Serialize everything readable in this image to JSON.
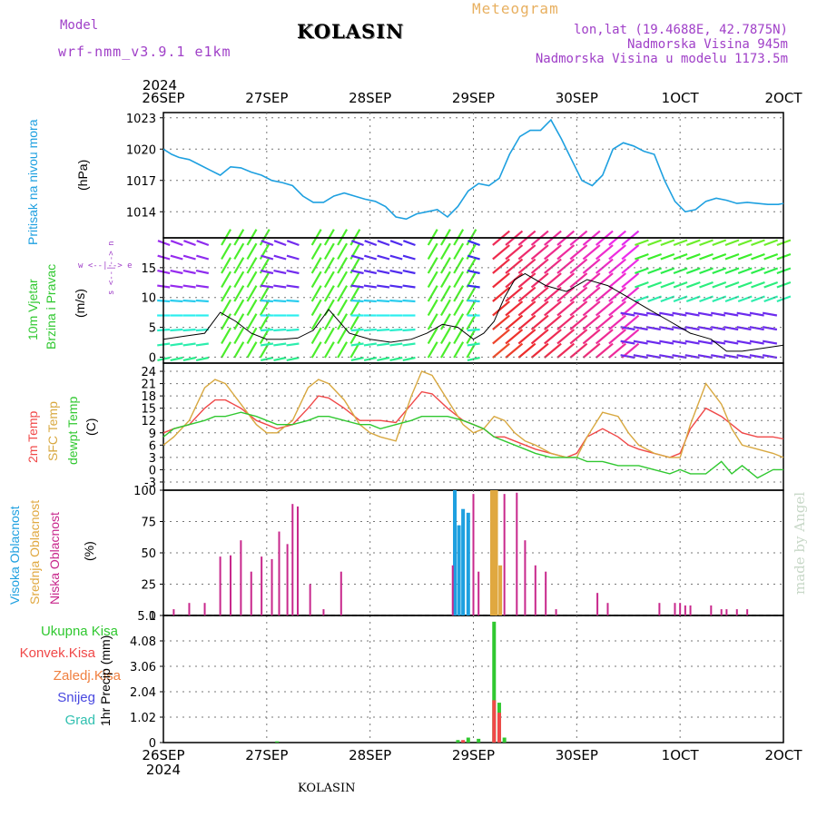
{
  "header": {
    "model_label": "Model",
    "model_name": "wrf-nmm_v3.9.1 e1km",
    "station": "KOLASIN",
    "product": "Meteogram",
    "lonlat": "lon,lat (19.4688E, 42.7875N)",
    "altitude": "Nadmorska Visina 945m",
    "model_altitude": "Nadmorska Visina u modelu 1173.5m",
    "footer_station": "KOLASIN",
    "credit": "made by Angel"
  },
  "time_axis": {
    "year": "2024",
    "labels": [
      "26SEP",
      "27SEP",
      "28SEP",
      "29SEP",
      "30SEP",
      "1OCT",
      "2OCT"
    ]
  },
  "panel_labels": {
    "pressure": {
      "name": "Pritisak na nivou mora",
      "unit": "(hPa)"
    },
    "wind": {
      "name1": "10m Vjetar",
      "name2": "Brzina i Pravac",
      "unit": "(m/s)",
      "compass": "w <--|--> e",
      "compass_v": "s <--|--> n"
    },
    "temp": {
      "t2m": "2m Temp",
      "sfc": "SFC Temp",
      "dew": "dewpt Temp",
      "unit": "(C)"
    },
    "cloud": {
      "high": "Visoka Oblacnost",
      "mid": "Srednja Oblacnost",
      "low": "Niska Oblacnost",
      "unit": "(%)"
    },
    "precip": {
      "total": "Ukupna Kisa",
      "conv": "Konvek.Kisa",
      "frozen": "Zaledj.Kisa",
      "snow": "Snijeg",
      "hail": "Grad",
      "unit": "1hr Precip (mm)"
    }
  },
  "colors": {
    "pressure": "#1ea0e0",
    "t2m": "#f04848",
    "sfc": "#d8a840",
    "dew": "#30c830",
    "high_cloud": "#1ea0e0",
    "mid_cloud": "#e0a840",
    "low_cloud": "#c8288c",
    "total_rain": "#30c830",
    "conv_rain": "#f04848",
    "frozen": "#f08040",
    "snow": "#4848e0",
    "hail": "#30c0b0"
  },
  "chart_data": [
    {
      "type": "line",
      "name": "pressure",
      "ylabel": "(hPa)",
      "ylim": [
        1011.5,
        1023.5
      ],
      "yticks": [
        1014,
        1017,
        1020,
        1023
      ],
      "x_days": [
        0,
        0.08,
        0.15,
        0.25,
        0.35,
        0.45,
        0.55,
        0.65,
        0.75,
        0.85,
        0.95,
        1.05,
        1.15,
        1.25,
        1.35,
        1.45,
        1.55,
        1.65,
        1.75,
        1.85,
        1.95,
        2.05,
        2.15,
        2.25,
        2.35,
        2.45,
        2.55,
        2.65,
        2.75,
        2.85,
        2.95,
        3.05,
        3.15,
        3.25,
        3.35,
        3.45,
        3.55,
        3.65,
        3.75,
        3.85,
        3.95,
        4.05,
        4.15,
        4.25,
        4.35,
        4.45,
        4.55,
        4.65,
        4.75,
        4.85,
        4.95,
        5.05,
        5.15,
        5.25,
        5.35,
        5.45,
        5.55,
        5.65,
        5.75,
        5.85,
        5.95,
        6.0
      ],
      "values": [
        1020,
        1019.5,
        1019.2,
        1019,
        1018.5,
        1018,
        1017.5,
        1018.3,
        1018.2,
        1017.8,
        1017.5,
        1017,
        1016.8,
        1016.5,
        1015.5,
        1014.9,
        1014.9,
        1015.5,
        1015.8,
        1015.5,
        1015.2,
        1015,
        1014.5,
        1013.5,
        1013.3,
        1013.8,
        1014,
        1014.2,
        1013.5,
        1014.5,
        1016,
        1016.7,
        1016.5,
        1017.2,
        1019.5,
        1021.2,
        1021.8,
        1021.8,
        1022.8,
        1021,
        1019,
        1017,
        1016.5,
        1017.5,
        1020,
        1020.6,
        1020.3,
        1019.8,
        1019.5,
        1017,
        1015,
        1014,
        1014.2,
        1015,
        1015.3,
        1015.1,
        1014.8,
        1014.9,
        1014.8,
        1014.7,
        1014.7,
        1014.8
      ]
    },
    {
      "type": "line",
      "name": "wind_speed",
      "ylabel": "(m/s)",
      "ylim": [
        -1,
        20
      ],
      "yticks": [
        0,
        5,
        10,
        15
      ],
      "x_days": [
        0,
        0.2,
        0.4,
        0.55,
        0.7,
        0.85,
        1.0,
        1.15,
        1.3,
        1.45,
        1.6,
        1.8,
        2.0,
        2.2,
        2.4,
        2.55,
        2.7,
        2.85,
        3.0,
        3.1,
        3.2,
        3.3,
        3.4,
        3.5,
        3.7,
        3.9,
        4.1,
        4.3,
        4.5,
        4.7,
        4.9,
        5.1,
        5.3,
        5.45,
        5.6,
        5.8,
        6.0
      ],
      "values": [
        3,
        3.5,
        4,
        7.5,
        6,
        4,
        3,
        3,
        3.2,
        4.5,
        8,
        4,
        3,
        2.5,
        3,
        4,
        5.5,
        5,
        3,
        4,
        6,
        10,
        13,
        14,
        12,
        11,
        13,
        12,
        10,
        8,
        6,
        4,
        3,
        1,
        1,
        1.5,
        2
      ]
    },
    {
      "type": "line",
      "name": "temperature",
      "ylabel": "(C)",
      "ylim": [
        -5,
        26
      ],
      "yticks": [
        -3,
        0,
        3,
        6,
        9,
        12,
        15,
        18,
        21,
        24
      ],
      "x_days": [
        0,
        0.1,
        0.25,
        0.4,
        0.5,
        0.6,
        0.75,
        0.9,
        1.0,
        1.1,
        1.25,
        1.4,
        1.5,
        1.6,
        1.75,
        1.9,
        2.0,
        2.1,
        2.25,
        2.4,
        2.5,
        2.6,
        2.75,
        2.9,
        3.0,
        3.1,
        3.2,
        3.3,
        3.4,
        3.5,
        3.6,
        3.75,
        3.9,
        4.0,
        4.1,
        4.25,
        4.4,
        4.5,
        4.6,
        4.75,
        4.9,
        5.0,
        5.1,
        5.25,
        5.4,
        5.5,
        5.6,
        5.75,
        5.9,
        6.0
      ],
      "series": [
        {
          "name": "2m Temp",
          "values": [
            9,
            10,
            11,
            15,
            17,
            17,
            15,
            12,
            11,
            10,
            11,
            15,
            18,
            17.5,
            15,
            12,
            12,
            12,
            11.5,
            16,
            19,
            18.5,
            15,
            12,
            11,
            10,
            8,
            8,
            7,
            6,
            5,
            4,
            3,
            4,
            8,
            10,
            8,
            6,
            5,
            4,
            3,
            4,
            10,
            15,
            13,
            11,
            9,
            8,
            8,
            7.5
          ]
        },
        {
          "name": "SFC Temp",
          "values": [
            6,
            8,
            12,
            20,
            22,
            21,
            16,
            11,
            9,
            9,
            12,
            20,
            22,
            21,
            17,
            11,
            9,
            8,
            7,
            18,
            24,
            23,
            17,
            11,
            9,
            10,
            13,
            12,
            9,
            7,
            6,
            4,
            3,
            3,
            8,
            14,
            13,
            9,
            6,
            4,
            3,
            3,
            11,
            21,
            16,
            10,
            6,
            5,
            4,
            3
          ]
        },
        {
          "name": "dewpt Temp",
          "values": [
            8,
            10,
            11,
            12,
            13,
            13,
            14,
            13,
            12,
            11,
            11,
            12,
            13,
            13,
            12,
            11,
            11,
            10,
            11,
            12,
            13,
            13,
            13,
            12,
            11,
            10,
            8,
            7,
            6,
            5,
            4,
            3,
            3,
            3,
            2,
            2,
            1,
            1,
            1,
            0,
            -1,
            0,
            -1,
            -1,
            2,
            -1,
            1,
            -2,
            0,
            0
          ]
        }
      ]
    },
    {
      "type": "bar",
      "name": "cloud_cover",
      "ylabel": "(%)",
      "ylim": [
        0,
        100
      ],
      "yticks": [
        0,
        25,
        50,
        75,
        100
      ],
      "series": [
        {
          "name": "Visoka Oblacnost",
          "x_days": [
            2.82,
            2.86,
            2.9,
            2.95
          ],
          "values": [
            100,
            72,
            85,
            82
          ]
        },
        {
          "name": "Srednja Oblacnost",
          "x_days": [
            3.18,
            3.2,
            3.22,
            3.26
          ],
          "values": [
            100,
            100,
            100,
            40
          ]
        },
        {
          "name": "Niska Oblacnost",
          "x_days": [
            0.1,
            0.25,
            0.4,
            0.55,
            0.65,
            0.75,
            0.85,
            0.95,
            1.05,
            1.12,
            1.2,
            1.25,
            1.3,
            1.42,
            1.55,
            1.72,
            2.8,
            3.0,
            3.05,
            3.3,
            3.42,
            3.5,
            3.6,
            3.7,
            3.8,
            4.2,
            4.3,
            4.8,
            4.95,
            5.0,
            5.05,
            5.1,
            5.3,
            5.4,
            5.45,
            5.55,
            5.65
          ],
          "values": [
            5,
            10,
            10,
            47,
            48,
            60,
            35,
            47,
            45,
            67,
            57,
            89,
            87,
            25,
            5,
            35,
            40,
            97,
            35,
            97,
            98,
            60,
            40,
            35,
            5,
            18,
            10,
            10,
            10,
            10,
            8,
            8,
            8,
            5,
            5,
            5,
            5
          ]
        }
      ]
    },
    {
      "type": "bar",
      "name": "precipitation",
      "ylabel": "1hr Precip (mm)",
      "ylim": [
        0,
        5.1
      ],
      "yticks": [
        0,
        1.02,
        2.04,
        3.06,
        4.08,
        5.1
      ],
      "series": [
        {
          "name": "Ukupna Kisa",
          "x_days": [
            1.1,
            2.85,
            2.95,
            3.05,
            3.2,
            3.25,
            3.3
          ],
          "values": [
            0.05,
            0.1,
            0.2,
            0.15,
            4.85,
            1.6,
            0.2
          ]
        },
        {
          "name": "Konvek.Kisa",
          "x_days": [
            2.9,
            3.2,
            3.25
          ],
          "values": [
            0.1,
            1.7,
            1.2
          ]
        }
      ]
    }
  ]
}
